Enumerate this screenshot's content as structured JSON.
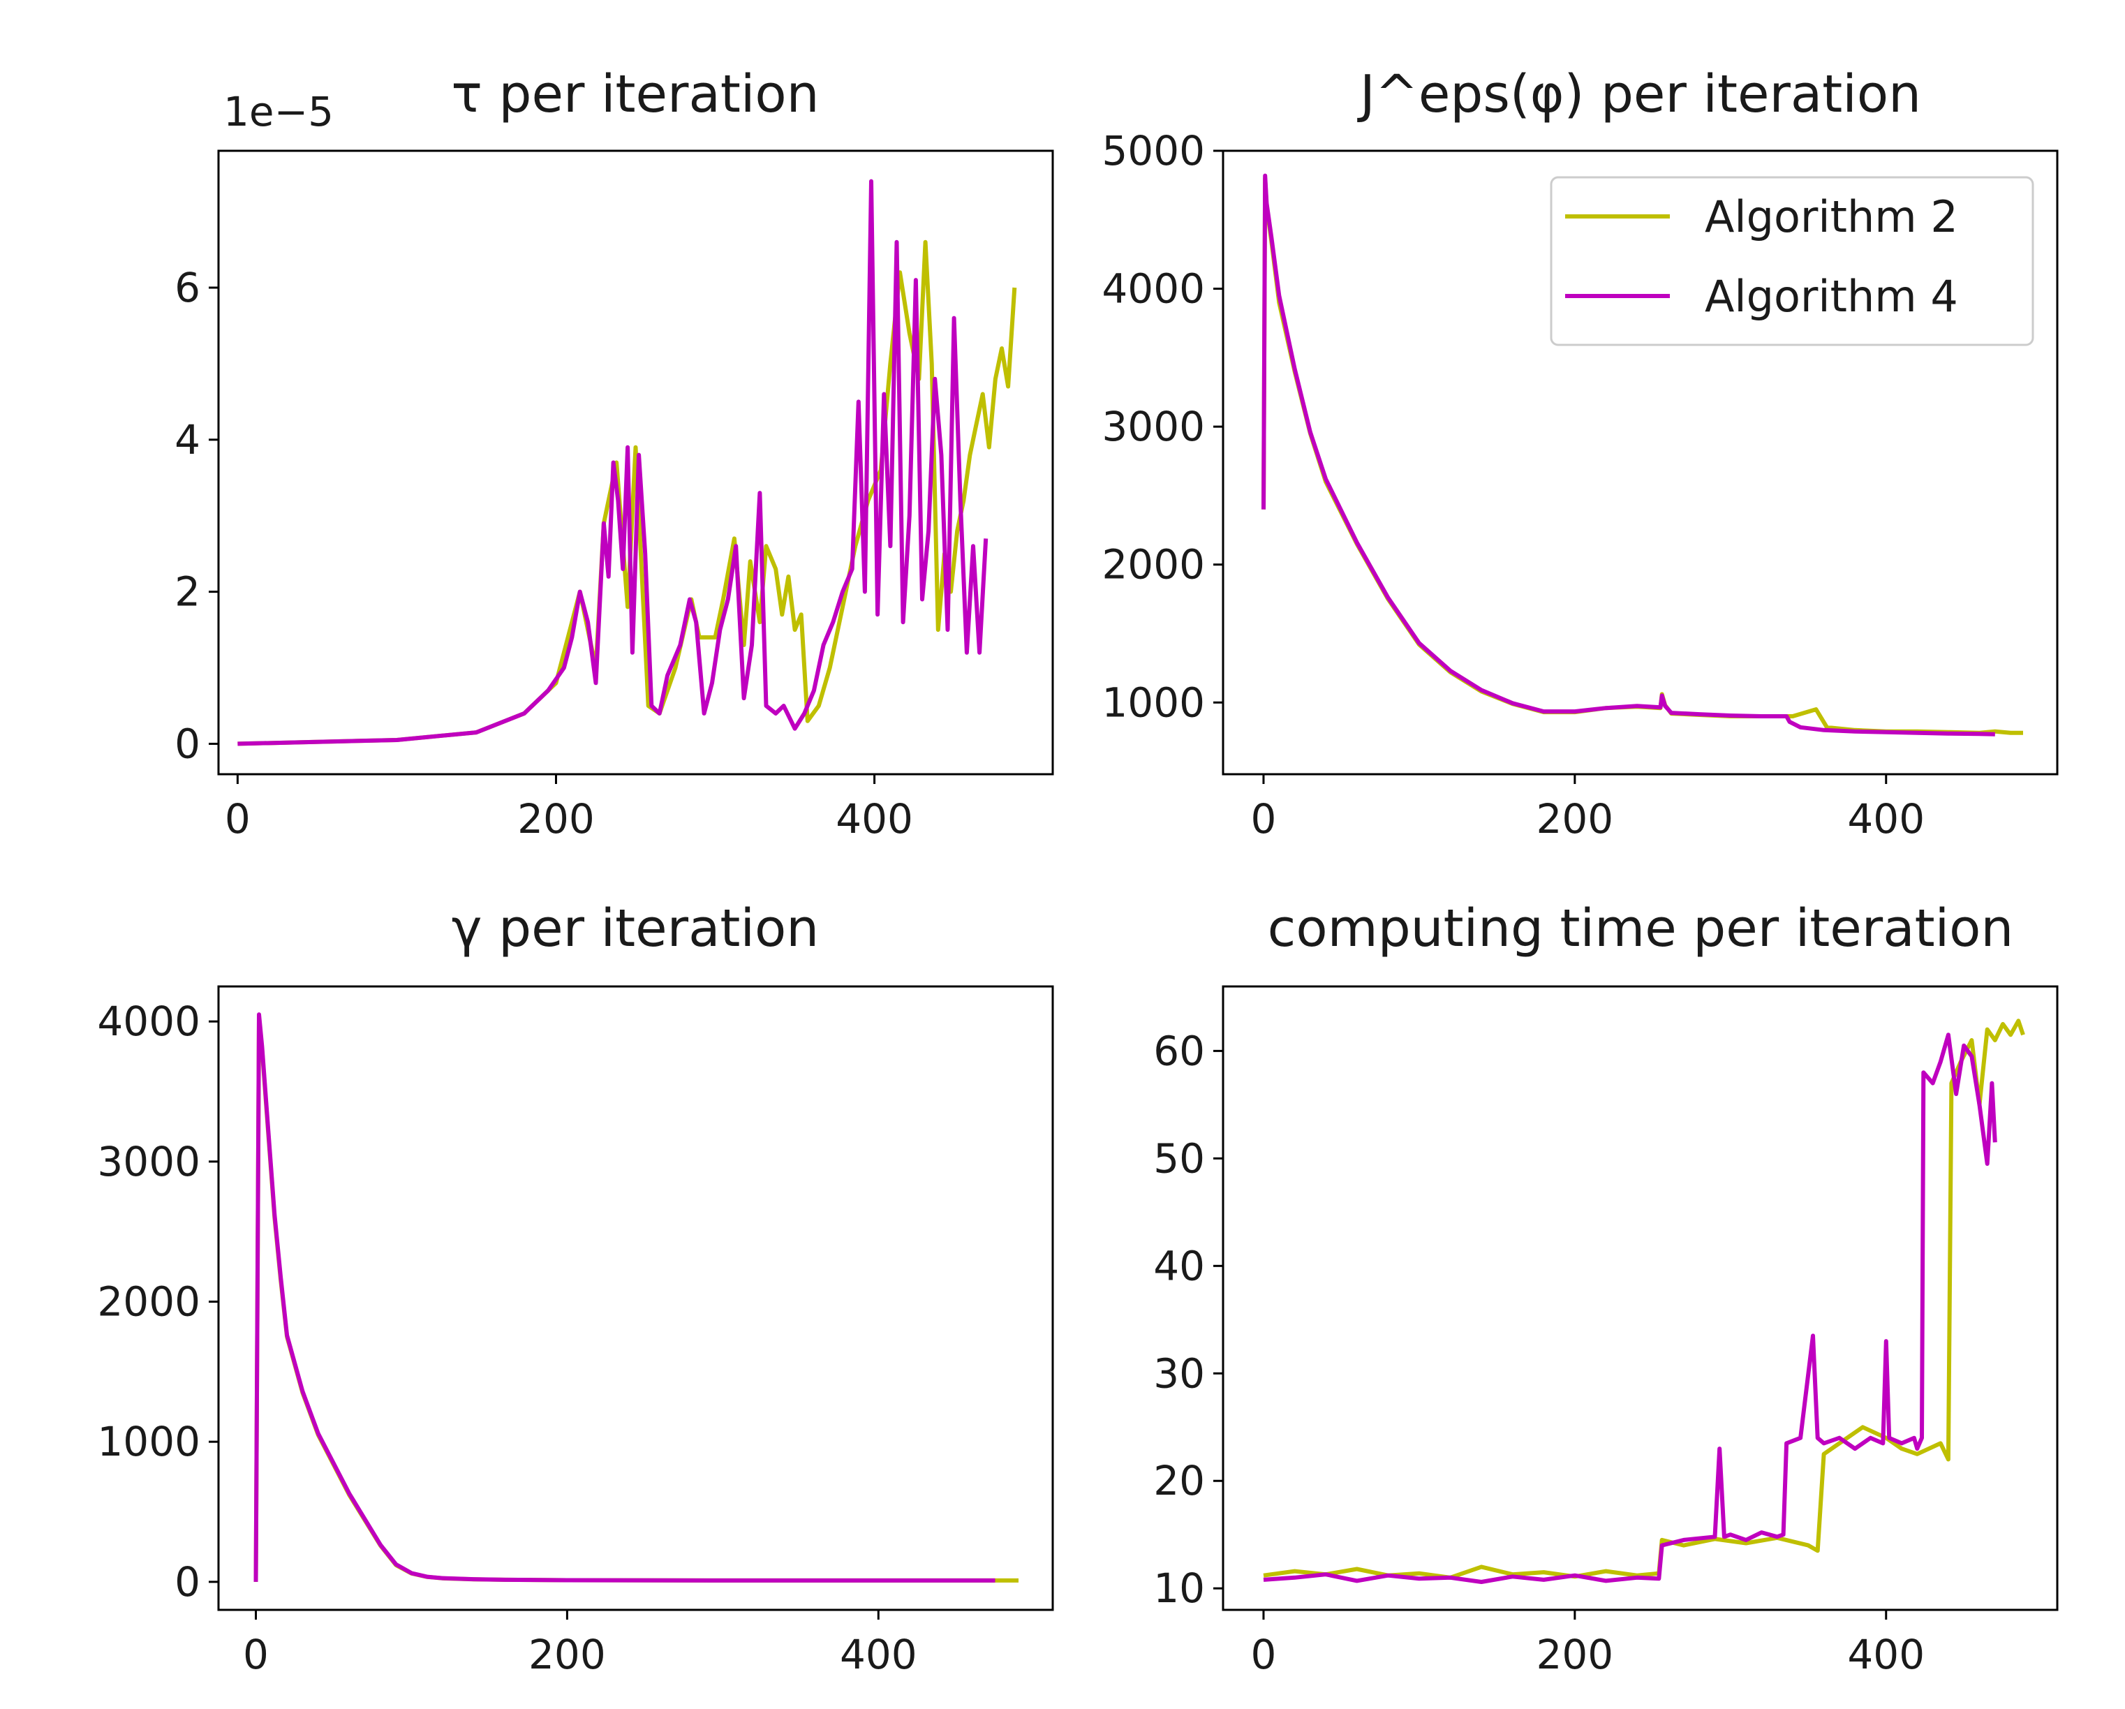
{
  "figure": {
    "legend": [
      {
        "name": "Algorithm 2",
        "color": "#bfbf00"
      },
      {
        "name": "Algorithm 4",
        "color": "#bf00bf"
      }
    ]
  },
  "chart_data": [
    {
      "type": "line",
      "title": "τ per iteration",
      "xlabel": "",
      "ylabel": "",
      "offset_text": "1e−5",
      "xlim": [
        -12,
        512
      ],
      "ylim": [
        -0.4,
        7.8
      ],
      "xticks": [
        0,
        200,
        400
      ],
      "yticks": [
        0,
        2,
        4,
        6
      ],
      "series": [
        {
          "name": "Algorithm 2",
          "color": "#bfbf00",
          "x": [
            0,
            100,
            150,
            180,
            200,
            215,
            225,
            230,
            238,
            245,
            250,
            258,
            265,
            275,
            285,
            290,
            300,
            305,
            312,
            318,
            322,
            328,
            332,
            338,
            342,
            346,
            350,
            354,
            358,
            365,
            372,
            380,
            388,
            396,
            404,
            410,
            416,
            422,
            428,
            432,
            436,
            440,
            444,
            448,
            452,
            456,
            460,
            464,
            468,
            472,
            476,
            480,
            484,
            488
          ],
          "y": [
            0,
            0.05,
            0.15,
            0.4,
            0.8,
            2.0,
            1.0,
            2.9,
            3.7,
            1.8,
            3.9,
            0.5,
            0.4,
            1.0,
            1.9,
            1.4,
            1.4,
            1.9,
            2.7,
            1.3,
            2.4,
            1.6,
            2.6,
            2.3,
            1.7,
            2.2,
            1.5,
            1.7,
            0.3,
            0.5,
            1.0,
            1.8,
            2.6,
            3.2,
            3.6,
            5.0,
            6.2,
            5.4,
            4.8,
            6.6,
            5.0,
            1.5,
            2.5,
            2.0,
            2.8,
            3.2,
            3.8,
            4.2,
            4.6,
            3.9,
            4.8,
            5.2,
            4.7,
            6.0
          ]
        },
        {
          "name": "Algorithm 4",
          "color": "#bf00bf",
          "x": [
            0,
            100,
            150,
            180,
            195,
            205,
            210,
            215,
            220,
            225,
            230,
            233,
            236,
            239,
            242,
            245,
            248,
            252,
            256,
            260,
            265,
            270,
            278,
            284,
            288,
            293,
            298,
            303,
            308,
            313,
            318,
            323,
            328,
            332,
            338,
            343,
            350,
            356,
            362,
            368,
            374,
            380,
            386,
            390,
            394,
            398,
            402,
            406,
            410,
            414,
            418,
            422,
            426,
            430,
            434,
            438,
            442,
            446,
            450,
            454,
            458,
            462,
            466,
            470
          ],
          "y": [
            0,
            0.05,
            0.15,
            0.4,
            0.7,
            1.0,
            1.4,
            2.0,
            1.6,
            0.8,
            2.9,
            2.2,
            3.7,
            3.2,
            2.3,
            3.9,
            1.2,
            3.8,
            2.5,
            0.5,
            0.4,
            0.9,
            1.3,
            1.9,
            1.6,
            0.4,
            0.8,
            1.5,
            1.9,
            2.6,
            0.6,
            1.3,
            3.3,
            0.5,
            0.4,
            0.5,
            0.2,
            0.4,
            0.7,
            1.3,
            1.6,
            2.0,
            2.3,
            4.5,
            2.0,
            7.4,
            1.7,
            4.6,
            2.6,
            6.6,
            1.6,
            3.0,
            6.1,
            1.9,
            2.8,
            4.8,
            3.8,
            1.5,
            5.6,
            3.2,
            1.2,
            2.6,
            1.2,
            2.7
          ]
        }
      ]
    },
    {
      "type": "line",
      "title": "J^eps(φ) per iteration",
      "xlabel": "",
      "ylabel": "",
      "legend_position": "upper right",
      "xlim": [
        -26,
        510
      ],
      "ylim": [
        480,
        5000
      ],
      "xticks": [
        0,
        200,
        400
      ],
      "yticks": [
        1000,
        2000,
        3000,
        4000,
        5000
      ],
      "series": [
        {
          "name": "Algorithm 2",
          "color": "#bfbf00",
          "x": [
            0,
            1,
            2,
            5,
            10,
            20,
            30,
            40,
            60,
            80,
            100,
            120,
            140,
            160,
            180,
            200,
            220,
            240,
            255,
            256,
            258,
            262,
            280,
            300,
            320,
            340,
            355,
            362,
            380,
            400,
            420,
            440,
            460,
            470,
            480,
            488
          ],
          "y": [
            2400,
            4800,
            4600,
            4350,
            3900,
            3400,
            2950,
            2600,
            2150,
            1750,
            1420,
            1220,
            1080,
            990,
            930,
            930,
            960,
            970,
            960,
            1060,
            980,
            920,
            910,
            900,
            900,
            900,
            950,
            820,
            800,
            790,
            790,
            785,
            780,
            790,
            780,
            780
          ]
        },
        {
          "name": "Algorithm 4",
          "color": "#bf00bf",
          "x": [
            0,
            1,
            2,
            5,
            10,
            20,
            30,
            40,
            60,
            80,
            100,
            120,
            140,
            160,
            180,
            200,
            220,
            240,
            255,
            256,
            258,
            262,
            280,
            300,
            320,
            336,
            338,
            345,
            360,
            380,
            400,
            420,
            440,
            460,
            470
          ],
          "y": [
            2400,
            4820,
            4620,
            4380,
            3950,
            3420,
            2960,
            2620,
            2160,
            1760,
            1430,
            1230,
            1090,
            995,
            935,
            935,
            960,
            975,
            965,
            1050,
            975,
            925,
            915,
            905,
            900,
            900,
            860,
            820,
            800,
            790,
            785,
            780,
            775,
            772,
            770
          ]
        }
      ]
    },
    {
      "type": "line",
      "title": "γ per iteration",
      "xlabel": "",
      "ylabel": "",
      "xlim": [
        -24,
        512
      ],
      "ylim": [
        -200,
        4250
      ],
      "xticks": [
        0,
        200,
        400
      ],
      "yticks": [
        0,
        1000,
        2000,
        3000,
        4000
      ],
      "series": [
        {
          "name": "Algorithm 2",
          "color": "#bfbf00",
          "x": [
            0,
            2,
            4,
            8,
            12,
            16,
            20,
            30,
            40,
            60,
            80,
            90,
            100,
            110,
            120,
            140,
            160,
            200,
            300,
            400,
            480,
            490
          ],
          "y": [
            0,
            4000,
            3800,
            3200,
            2600,
            2150,
            1750,
            1350,
            1050,
            620,
            260,
            120,
            60,
            35,
            25,
            18,
            15,
            12,
            10,
            10,
            10,
            10
          ]
        },
        {
          "name": "Algorithm 4",
          "color": "#bf00bf",
          "x": [
            0,
            2,
            4,
            8,
            12,
            16,
            20,
            30,
            40,
            60,
            80,
            90,
            100,
            110,
            120,
            140,
            160,
            200,
            300,
            400,
            475
          ],
          "y": [
            0,
            4050,
            3820,
            3220,
            2620,
            2170,
            1760,
            1360,
            1060,
            630,
            265,
            125,
            62,
            36,
            26,
            19,
            15,
            12,
            10,
            10,
            10
          ]
        }
      ]
    },
    {
      "type": "line",
      "title": "computing time per iteration",
      "xlabel": "",
      "ylabel": "",
      "xlim": [
        -26,
        510
      ],
      "ylim": [
        8,
        66
      ],
      "xticks": [
        0,
        200,
        400
      ],
      "yticks": [
        10,
        20,
        30,
        40,
        50,
        60
      ],
      "series": [
        {
          "name": "Algorithm 2",
          "color": "#bfbf00",
          "x": [
            0,
            20,
            40,
            60,
            80,
            100,
            120,
            140,
            160,
            180,
            200,
            220,
            240,
            254,
            256,
            270,
            290,
            310,
            330,
            350,
            356,
            360,
            370,
            385,
            400,
            410,
            420,
            435,
            440,
            442,
            448,
            455,
            460,
            465,
            470,
            475,
            480,
            485,
            488
          ],
          "y": [
            11.2,
            11.6,
            11.3,
            11.8,
            11.2,
            11.4,
            11.0,
            12.0,
            11.3,
            11.5,
            11.1,
            11.6,
            11.2,
            11.4,
            14.5,
            14.0,
            14.6,
            14.2,
            14.7,
            14.0,
            13.5,
            22.5,
            23.5,
            25.0,
            24.0,
            23.0,
            22.5,
            23.5,
            22.0,
            57.0,
            59.0,
            61.0,
            55.0,
            62.0,
            61.0,
            62.5,
            61.5,
            62.8,
            61.5
          ]
        },
        {
          "name": "Algorithm 4",
          "color": "#bf00bf",
          "x": [
            0,
            20,
            40,
            60,
            80,
            100,
            120,
            140,
            160,
            180,
            200,
            220,
            240,
            254,
            256,
            270,
            290,
            293,
            296,
            300,
            310,
            320,
            330,
            334,
            336,
            345,
            353,
            356,
            360,
            370,
            380,
            390,
            398,
            400,
            402,
            410,
            418,
            420,
            423,
            424,
            430,
            435,
            440,
            445,
            450,
            455,
            460,
            465,
            468,
            470
          ],
          "y": [
            10.8,
            11.0,
            11.3,
            10.7,
            11.2,
            10.9,
            11.0,
            10.6,
            11.1,
            10.8,
            11.2,
            10.7,
            11.0,
            10.9,
            14.0,
            14.5,
            14.8,
            23.0,
            14.8,
            15.0,
            14.5,
            15.2,
            14.8,
            15.0,
            23.5,
            24.0,
            33.5,
            24.0,
            23.5,
            24.0,
            23.0,
            24.0,
            23.5,
            33.0,
            24.0,
            23.5,
            24.0,
            23.0,
            24.0,
            58.0,
            57.0,
            59.0,
            61.5,
            56.0,
            60.5,
            59.5,
            55.0,
            49.5,
            57.0,
            51.5
          ]
        }
      ]
    }
  ]
}
